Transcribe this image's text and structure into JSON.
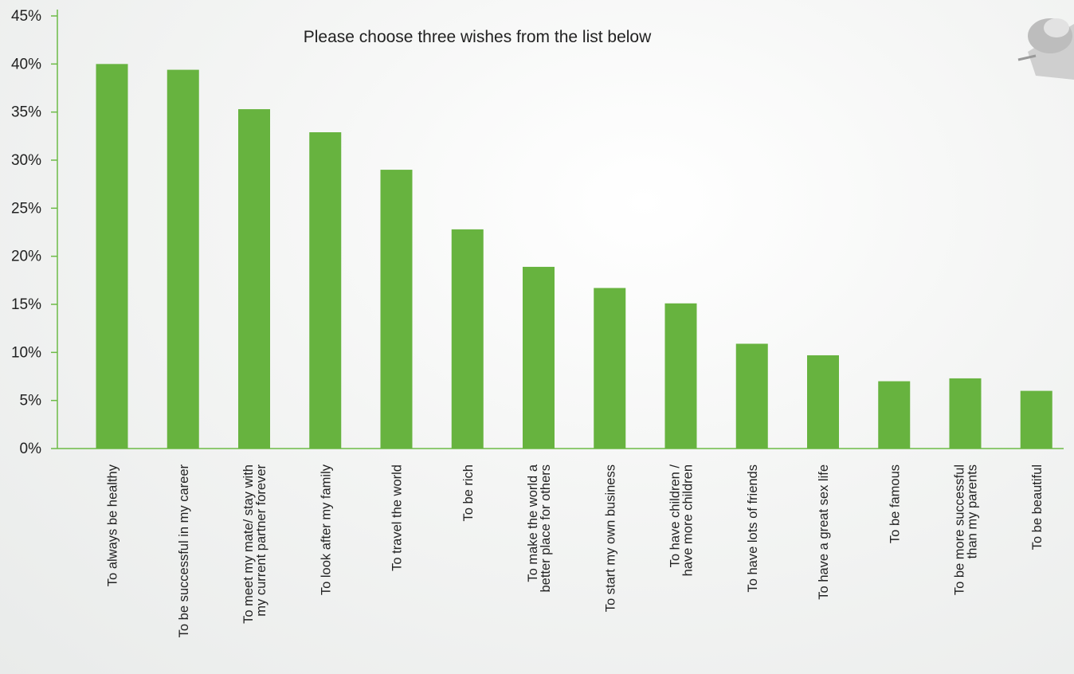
{
  "chart_data": {
    "type": "bar",
    "title": "Please choose three wishes from the list below",
    "categories": [
      [
        "To always be healthy"
      ],
      [
        "To be successful in my career"
      ],
      [
        "To meet my mate/ stay with",
        "my current partner forever"
      ],
      [
        "To look after my family"
      ],
      [
        "To travel the world"
      ],
      [
        "To be rich"
      ],
      [
        "To make the world a",
        "better place for others"
      ],
      [
        "To start my own business"
      ],
      [
        "To have children /",
        "have more children"
      ],
      [
        "To have lots of friends"
      ],
      [
        "To have a great sex life"
      ],
      [
        "To be famous"
      ],
      [
        "To be more successful",
        "than my parents"
      ],
      [
        "To be beautiful"
      ]
    ],
    "values": [
      40,
      39.4,
      35.3,
      32.9,
      29.0,
      22.8,
      18.9,
      16.7,
      15.1,
      10.9,
      9.7,
      7.0,
      7.3,
      6.0
    ],
    "ylim": [
      0,
      45
    ],
    "yticks": [
      "0%",
      "5%",
      "10%",
      "15%",
      "20%",
      "25%",
      "30%",
      "35%",
      "40%",
      "45%"
    ],
    "bar_color": "#67b33f",
    "axis_color": "#6dbb47",
    "xlabel": "",
    "ylabel": ""
  }
}
